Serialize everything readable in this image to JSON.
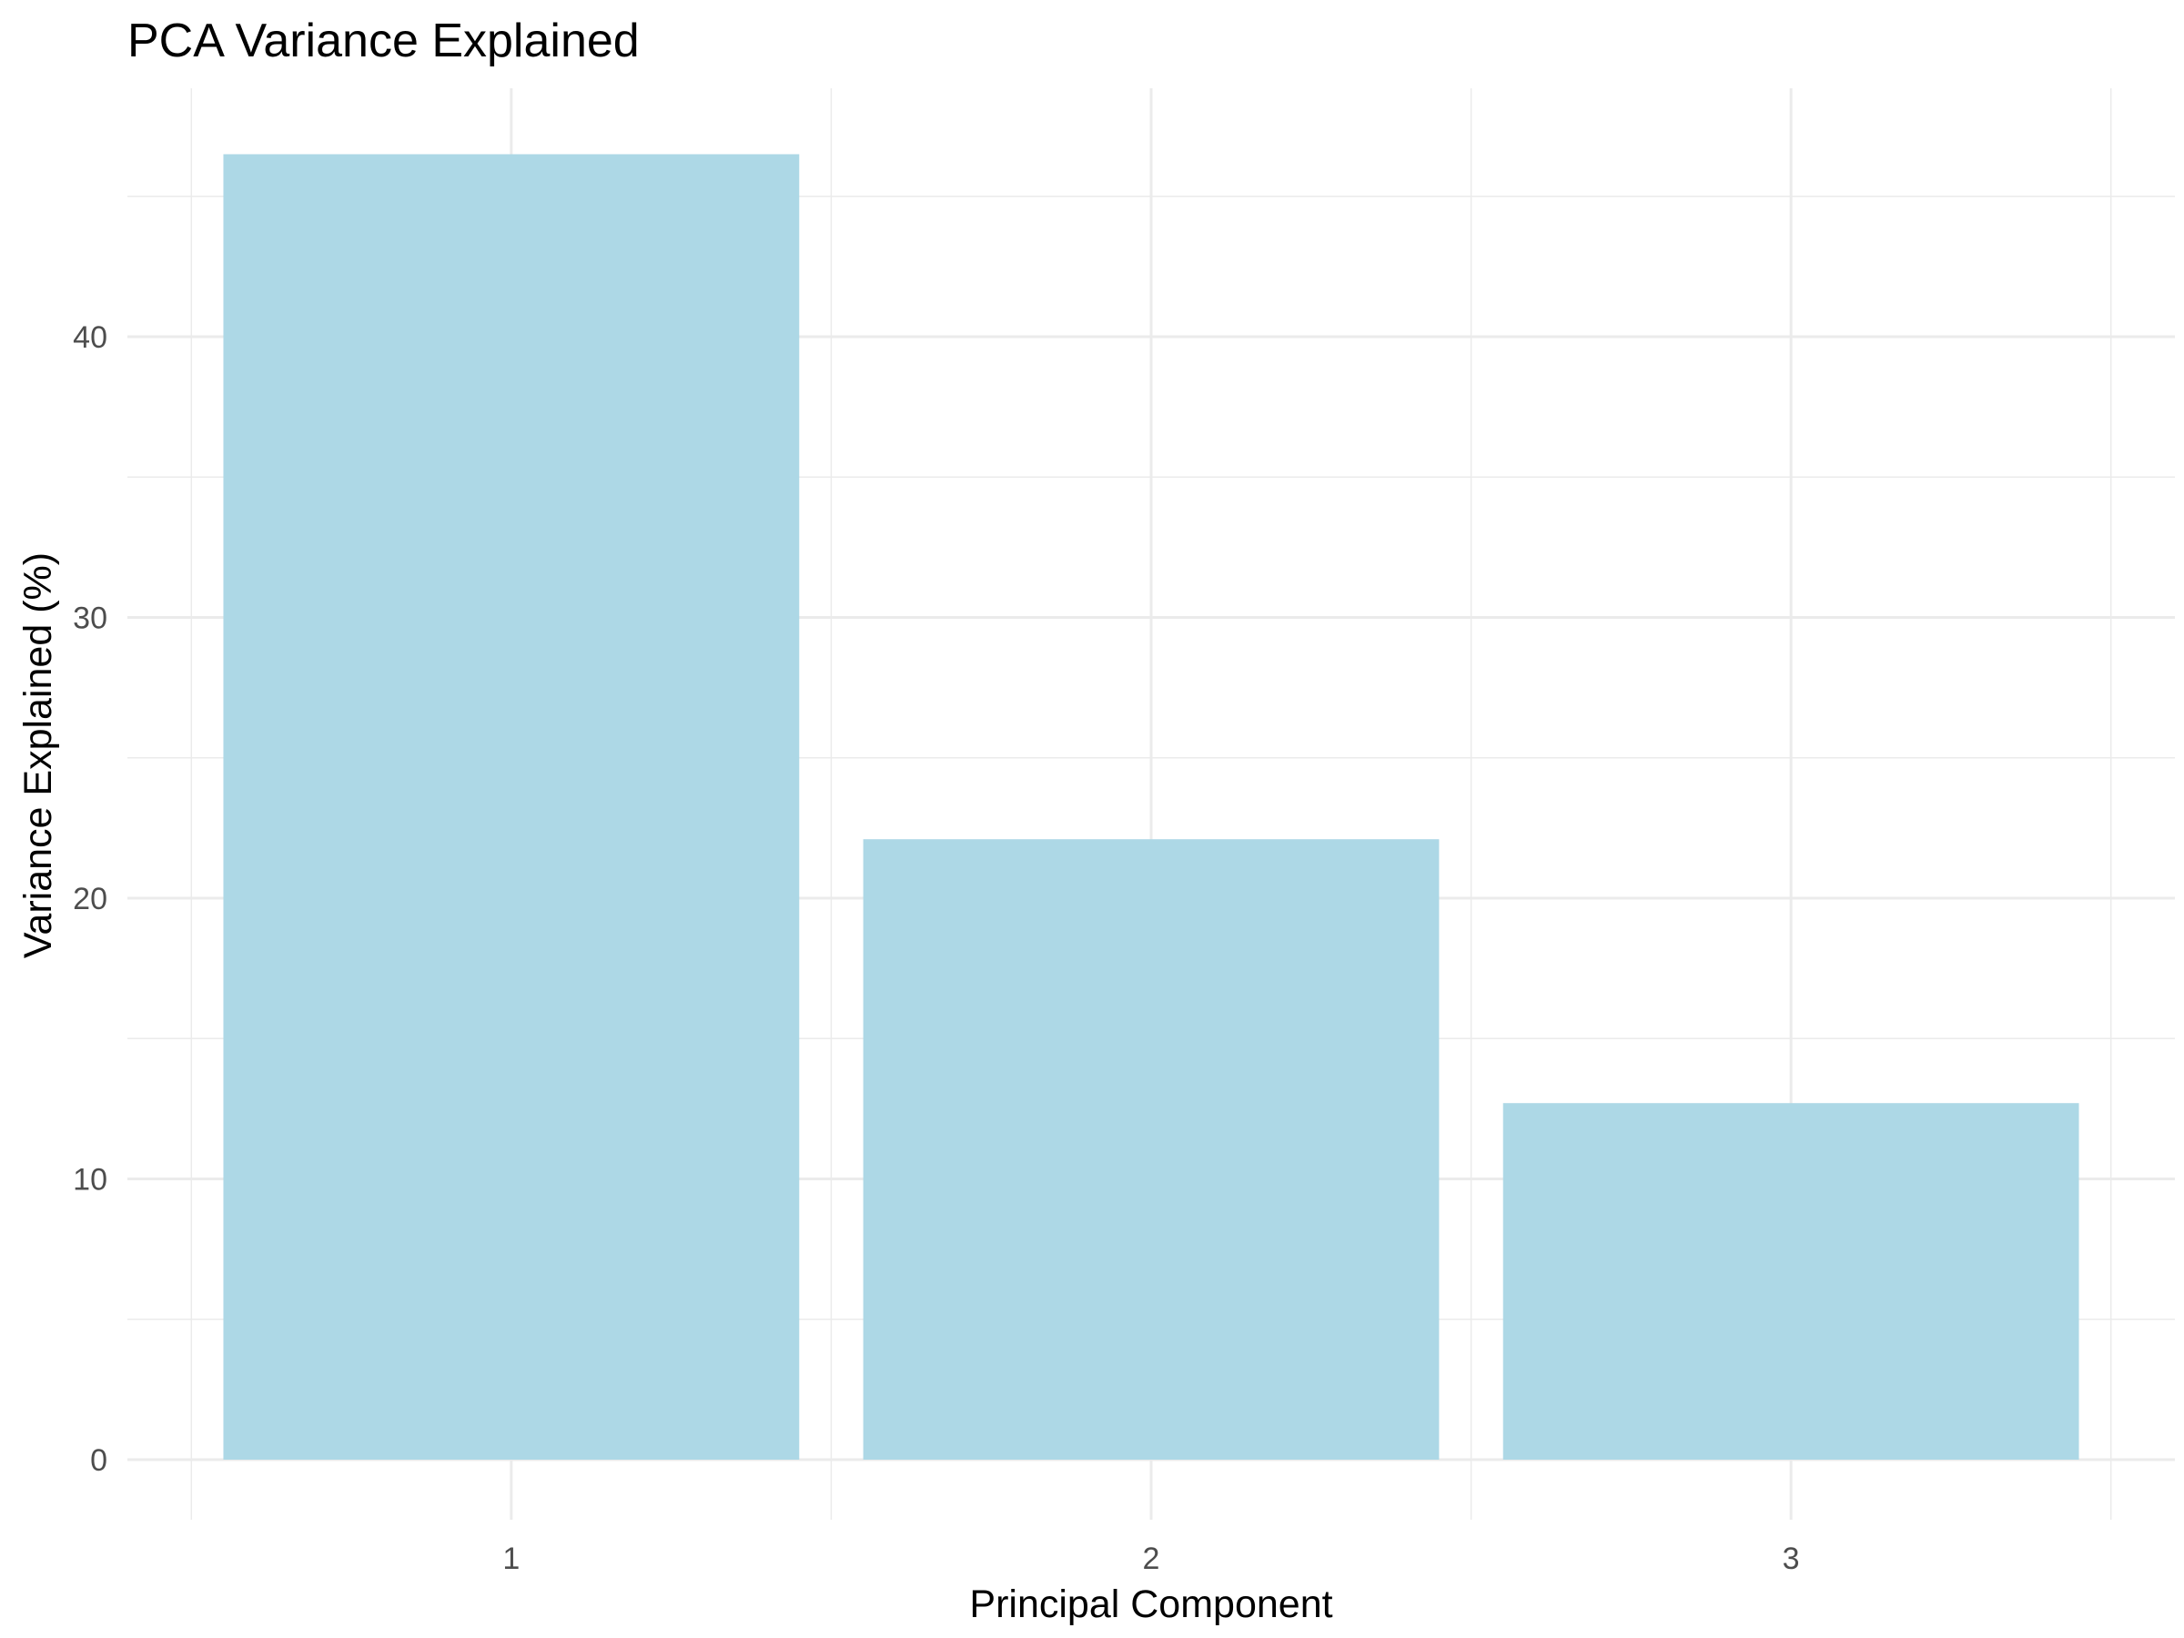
{
  "chart_data": {
    "type": "bar",
    "title": "PCA Variance Explained",
    "xlabel": "Principal Component",
    "ylabel": "Variance Explained (%)",
    "categories": [
      "1",
      "2",
      "3"
    ],
    "values": [
      46.5,
      22.1,
      12.7
    ],
    "ylim": [
      0,
      50
    ],
    "yticks": [
      0,
      10,
      20,
      30,
      40
    ],
    "ytick_labels": [
      "0",
      "10",
      "20",
      "30",
      "40"
    ],
    "bar_color": "#ADD8E6",
    "grid": true,
    "legend": "none"
  }
}
